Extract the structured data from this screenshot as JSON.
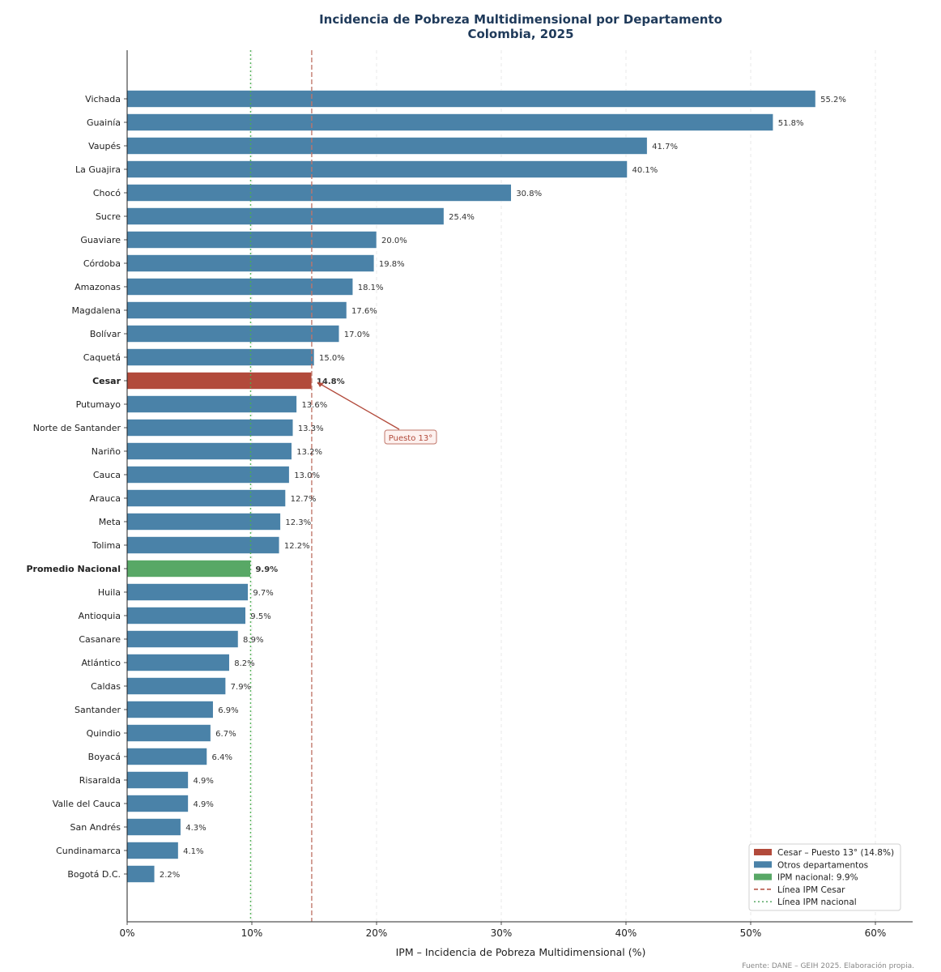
{
  "chart_data": {
    "type": "bar",
    "orientation": "horizontal",
    "title": "Incidencia de Pobreza Multidimensional por Departamento",
    "subtitle": "Colombia, 2025",
    "xlabel": "IPM – Incidencia de Pobreza Multidimensional (%)",
    "ylabel": "",
    "xlim": [
      0,
      63
    ],
    "xticks": [
      0,
      10,
      20,
      30,
      40,
      50,
      60
    ],
    "xtick_labels": [
      "0%",
      "10%",
      "20%",
      "30%",
      "40%",
      "50%",
      "60%"
    ],
    "grid": "vertical-dashed",
    "categories": [
      "Vichada",
      "Guainía",
      "Vaupés",
      "La Guajira",
      "Chocó",
      "Sucre",
      "Guaviare",
      "Córdoba",
      "Amazonas",
      "Magdalena",
      "Bolívar",
      "Caquetá",
      "Cesar",
      "Putumayo",
      "Norte de Santander",
      "Nariño",
      "Cauca",
      "Arauca",
      "Meta",
      "Tolima",
      "Promedio Nacional",
      "Huila",
      "Antioquia",
      "Casanare",
      "Atlántico",
      "Caldas",
      "Santander",
      "Quindio",
      "Boyacá",
      "Risaralda",
      "Valle del Cauca",
      "San Andrés",
      "Cundinamarca",
      "Bogotá D.C."
    ],
    "values": [
      55.2,
      51.8,
      41.7,
      40.1,
      30.8,
      25.4,
      20.0,
      19.8,
      18.1,
      17.6,
      17.0,
      15.0,
      14.8,
      13.6,
      13.3,
      13.2,
      13.0,
      12.7,
      12.3,
      12.2,
      9.9,
      9.7,
      9.5,
      8.9,
      8.2,
      7.9,
      6.9,
      6.7,
      6.4,
      4.9,
      4.9,
      4.3,
      4.1,
      2.2
    ],
    "value_labels": [
      "55.2%",
      "51.8%",
      "41.7%",
      "40.1%",
      "30.8%",
      "25.4%",
      "20.0%",
      "19.8%",
      "18.1%",
      "17.6%",
      "17.0%",
      "15.0%",
      "14.8%",
      "13.6%",
      "13.3%",
      "13.2%",
      "13.0%",
      "12.7%",
      "12.3%",
      "12.2%",
      "9.9%",
      "9.7%",
      "9.5%",
      "8.9%",
      "8.2%",
      "7.9%",
      "6.9%",
      "6.7%",
      "6.4%",
      "4.9%",
      "4.9%",
      "4.3%",
      "4.1%",
      "2.2%"
    ],
    "highlight": {
      "Cesar": "cesar",
      "Promedio Nacional": "national"
    },
    "reference_lines": [
      {
        "name": "Línea IPM Cesar",
        "value": 14.8,
        "style": "dashed",
        "color": "#c0766a"
      },
      {
        "name": "Línea IPM nacional",
        "value": 9.9,
        "style": "dotted",
        "color": "#4caf50"
      }
    ],
    "annotation": {
      "text": "Puesto 13°",
      "target": "Cesar",
      "target_value": 14.8
    },
    "legend": {
      "placement": "bottom-right",
      "entries": [
        {
          "label": "Cesar – Puesto 13° (14.8%)",
          "kind": "patch",
          "color": "#b24a3b"
        },
        {
          "label": "Otros departamentos",
          "kind": "patch",
          "color": "#4a82a8"
        },
        {
          "label": "IPM nacional: 9.9%",
          "kind": "patch",
          "color": "#58a866"
        },
        {
          "label": "Línea IPM Cesar",
          "kind": "dashed",
          "color": "#b24a3b"
        },
        {
          "label": "Línea IPM nacional",
          "kind": "dotted",
          "color": "#58a866"
        }
      ]
    },
    "source": "Fuente: DANE – GEIH 2025. Elaboración propia."
  },
  "colors": {
    "default_bar": "#4a82a8",
    "cesar_bar": "#b24a3b",
    "national_bar": "#58a866",
    "cesar_text": "#b24a3b",
    "national_text": "#58a866",
    "title": "#1f3a5a"
  }
}
